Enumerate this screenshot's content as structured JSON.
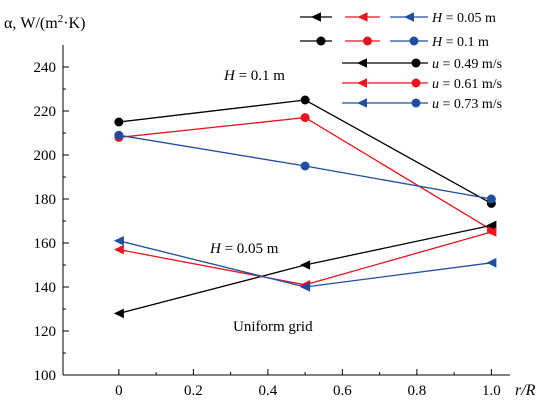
{
  "chart_data": {
    "type": "line",
    "ylabel_prefix": "α, W/(m",
    "ylabel_sup": "2",
    "ylabel_suffix": "·K)",
    "xlabel": "r/R",
    "xlim": [
      -0.15,
      1.05
    ],
    "ylim": [
      100,
      250
    ],
    "x_ticks": [
      0,
      0.2,
      0.4,
      0.6,
      0.8,
      1.0
    ],
    "x_tick_labels": [
      "0",
      "0.2",
      "0.4",
      "0.6",
      "0.8",
      "1.0"
    ],
    "y_ticks": [
      100,
      120,
      140,
      160,
      180,
      200,
      220,
      240
    ],
    "y_tick_labels": [
      "100",
      "120",
      "140",
      "160",
      "180",
      "200",
      "220",
      "240"
    ],
    "colors": {
      "u049": "#000000",
      "u061": "#e8141e",
      "u073": "#1f4ea1"
    },
    "series": [
      {
        "color_key": "u049",
        "marker": "circle",
        "x": [
          0,
          0.5,
          1.0
        ],
        "y": [
          215,
          225,
          178
        ]
      },
      {
        "color_key": "u061",
        "marker": "circle",
        "x": [
          0,
          0.5,
          1.0
        ],
        "y": [
          208,
          217,
          166
        ]
      },
      {
        "color_key": "u073",
        "marker": "circle",
        "x": [
          0,
          0.5,
          1.0
        ],
        "y": [
          209,
          195,
          180
        ]
      },
      {
        "color_key": "u049",
        "marker": "triangle",
        "x": [
          0,
          0.5,
          1.0
        ],
        "y": [
          128,
          150,
          168
        ]
      },
      {
        "color_key": "u061",
        "marker": "triangle",
        "x": [
          0,
          0.5,
          1.0
        ],
        "y": [
          157,
          141,
          165
        ]
      },
      {
        "color_key": "u073",
        "marker": "triangle",
        "x": [
          0,
          0.5,
          1.0
        ],
        "y": [
          161,
          140,
          151
        ]
      }
    ],
    "annotations": {
      "h01": {
        "label": "H",
        "value": " = 0.1 m"
      },
      "h005": {
        "label": "H",
        "value": " = 0.05 m"
      },
      "grid": "Uniform grid"
    },
    "legend": [
      {
        "label": "H",
        "value": " = 0.05 m",
        "keys": [
          "u049",
          "u061",
          "u073"
        ],
        "marker": "triangle"
      },
      {
        "label": "H",
        "value": " = 0.1 m",
        "keys": [
          "u049",
          "u061",
          "u073"
        ],
        "marker": "circle"
      },
      {
        "label": "u",
        "value": " = 0.49 m/s",
        "keys": [
          "u049",
          "u049"
        ],
        "marker": "mixed"
      },
      {
        "label": "u",
        "value": " = 0.61 m/s",
        "keys": [
          "u061",
          "u061"
        ],
        "marker": "mixed"
      },
      {
        "label": "u",
        "value": " = 0.73 m/s",
        "keys": [
          "u073",
          "u073"
        ],
        "marker": "mixed"
      }
    ],
    "grid": false,
    "legend_position": "top-right"
  }
}
